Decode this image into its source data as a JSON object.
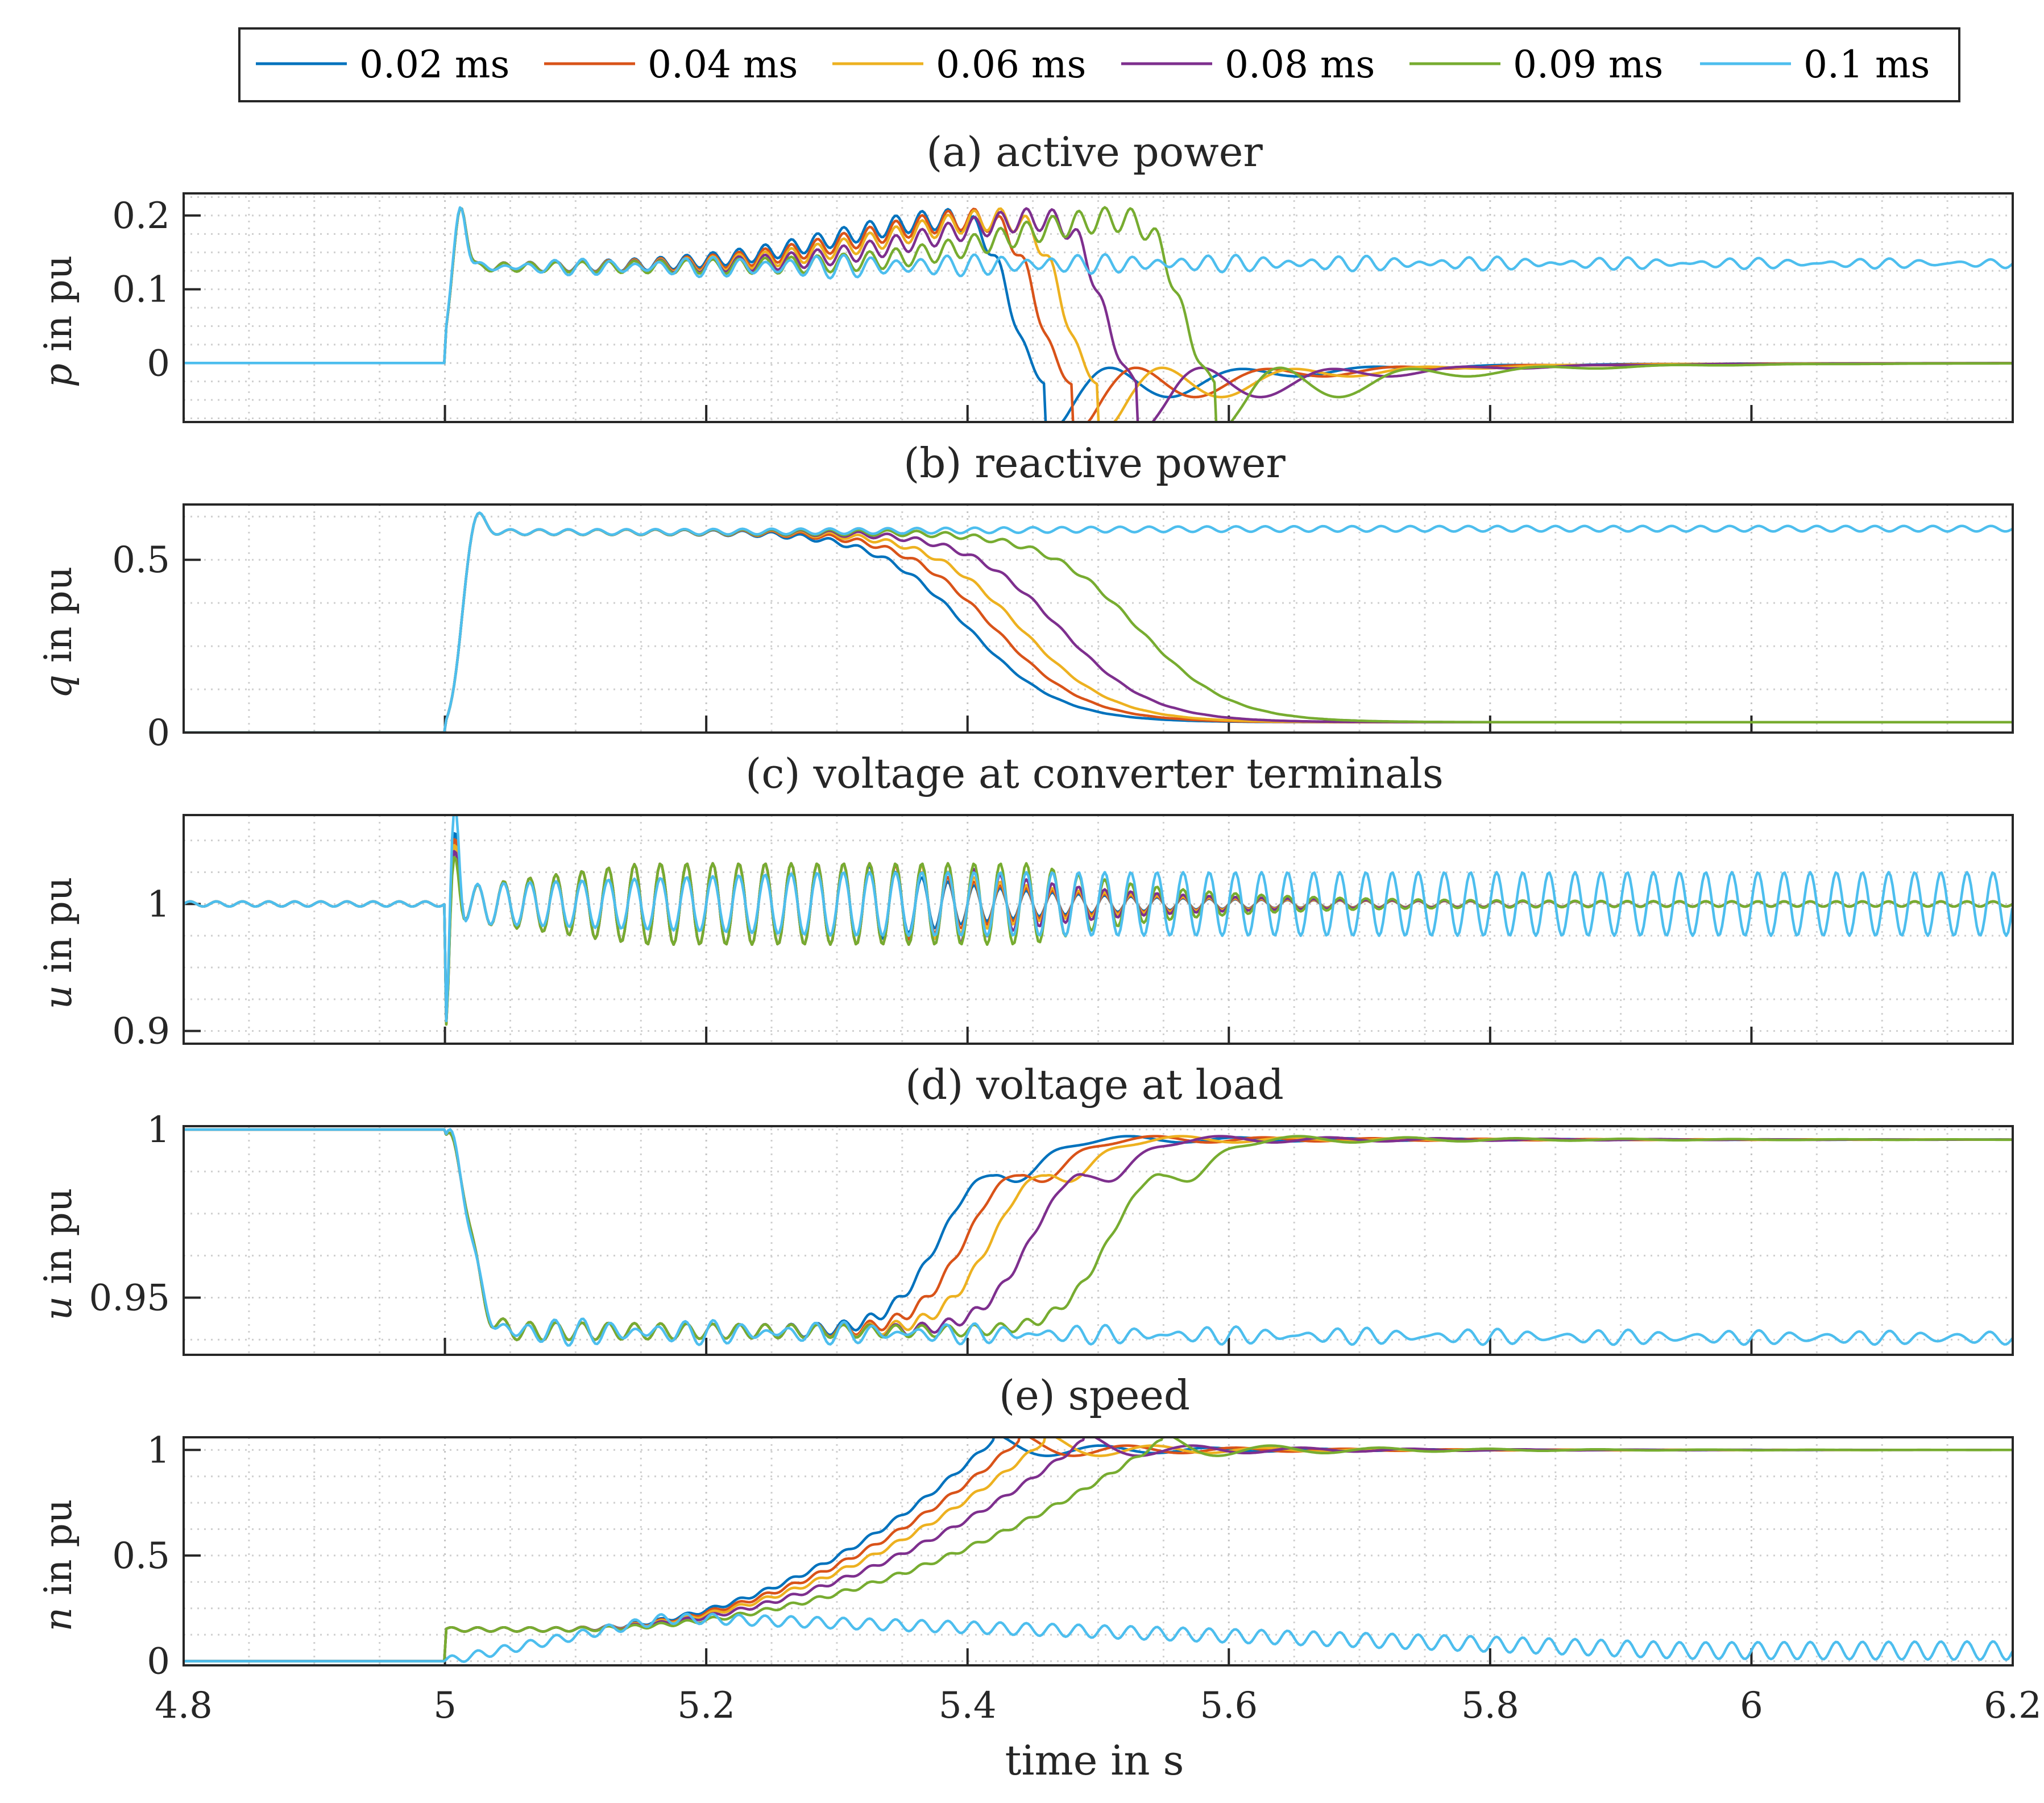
{
  "chart_data": {
    "type": "line",
    "legend": {
      "placement": "top",
      "entries": [
        "0.02 ms",
        "0.04 ms",
        "0.06 ms",
        "0.08 ms",
        "0.09 ms",
        "0.1 ms"
      ]
    },
    "series_colors": [
      "#0072BD",
      "#D95319",
      "#EDB120",
      "#7E2F8E",
      "#77AC30",
      "#4DBEEE"
    ],
    "transition_times_s": [
      5.42,
      5.44,
      5.46,
      5.49,
      5.55,
      null
    ],
    "xlabel": "time in s",
    "xlim": [
      4.8,
      6.2
    ],
    "xticks": [
      4.8,
      5,
      5.2,
      5.4,
      5.6,
      5.8,
      6,
      6.2
    ],
    "xtick_labels": [
      "4.8",
      "5",
      "5.2",
      "5.4",
      "5.6",
      "5.8",
      "6",
      "6.2"
    ],
    "fault_time_s": 5.0,
    "panels": [
      {
        "id": "p",
        "title": "(a) active power",
        "ylabel_var": "p",
        "ylabel_rest": " in pu",
        "ylim": [
          -0.08,
          0.23
        ],
        "yticks": [
          0,
          0.1,
          0.2
        ],
        "ytick_labels": [
          "0",
          "0.1",
          "0.2"
        ],
        "pre_value": 0.0,
        "peak_value": 0.22,
        "operating_value": 0.13,
        "final_value_recovered": 0.0,
        "final_value_unstable": 0.135
      },
      {
        "id": "q",
        "title": "(b) reactive power",
        "ylabel_var": "q",
        "ylabel_rest": " in pu",
        "ylim": [
          0,
          0.66
        ],
        "yticks": [
          0,
          0.5
        ],
        "ytick_labels": [
          "0",
          "0.5"
        ],
        "pre_value": 0.0,
        "peak_value": 0.65,
        "operating_value": 0.58,
        "final_value_recovered": 0.03,
        "final_value_unstable": 0.59
      },
      {
        "id": "u_conv",
        "title": "(c) voltage at converter terminals",
        "ylabel_var": "u",
        "ylabel_rest": " in pu",
        "ylim": [
          0.89,
          1.07
        ],
        "yticks": [
          0.9,
          1
        ],
        "ytick_labels": [
          "0.9",
          "1"
        ],
        "pre_value": 1.0,
        "final_value_recovered": 1.0,
        "final_value_unstable": 1.0,
        "sustained_oscillation_amplitude_unstable": 0.025
      },
      {
        "id": "u_load",
        "title": "(d) voltage at load",
        "ylabel_var": "u",
        "ylabel_rest": " in pu",
        "ylim": [
          0.933,
          1.001
        ],
        "yticks": [
          0.95,
          1
        ],
        "ytick_labels": [
          "0.95",
          "1"
        ],
        "pre_value": 1.0,
        "operating_value": 0.94,
        "final_value_recovered": 0.997,
        "final_value_unstable": 0.938
      },
      {
        "id": "n",
        "title": "(e) speed",
        "ylabel_var": "n",
        "ylabel_rest": " in pu",
        "ylim": [
          -0.02,
          1.06
        ],
        "yticks": [
          0,
          0.5,
          1
        ],
        "ytick_labels": [
          "0",
          "0.5",
          "1"
        ],
        "pre_value": 0.0,
        "peak_value": 1.05,
        "final_value_recovered": 1.0,
        "final_value_unstable": 0.05
      }
    ]
  }
}
